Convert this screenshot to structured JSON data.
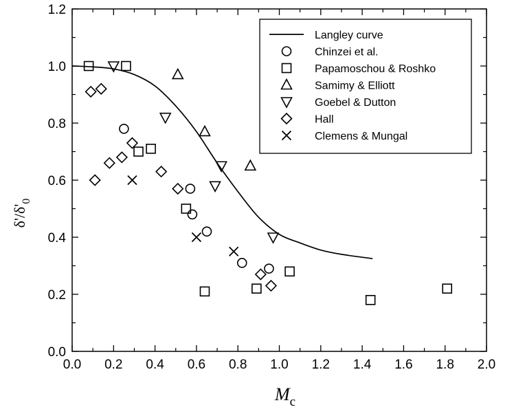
{
  "chart_data": {
    "type": "scatter",
    "xlabel": "M",
    "xlabel_subscript": "c",
    "ylabel": "δ'/δ'",
    "ylabel_subscript": "0",
    "xlim": [
      0.0,
      2.0
    ],
    "ylim": [
      0.0,
      1.2
    ],
    "x_ticks": [
      "0.0",
      "0.2",
      "0.4",
      "0.6",
      "0.8",
      "1.0",
      "1.2",
      "1.4",
      "1.6",
      "1.8",
      "2.0"
    ],
    "y_ticks": [
      "0.0",
      "0.2",
      "0.4",
      "0.6",
      "0.8",
      "1.0",
      "1.2"
    ],
    "grid": false,
    "legend_position": "top-right",
    "series": [
      {
        "name": "Langley curve",
        "kind": "line",
        "marker": "none",
        "x": [
          0.0,
          0.1,
          0.2,
          0.3,
          0.4,
          0.5,
          0.6,
          0.7,
          0.8,
          0.9,
          1.0,
          1.1,
          1.2,
          1.3,
          1.45
        ],
        "y": [
          1.0,
          0.997,
          0.99,
          0.97,
          0.93,
          0.86,
          0.77,
          0.66,
          0.56,
          0.47,
          0.41,
          0.38,
          0.355,
          0.34,
          0.325
        ]
      },
      {
        "name": "Chinzei et al.",
        "marker": "circle",
        "x": [
          0.25,
          0.57,
          0.58,
          0.65,
          0.82,
          0.95
        ],
        "y": [
          0.78,
          0.57,
          0.48,
          0.42,
          0.31,
          0.29
        ]
      },
      {
        "name": "Papamoschou & Roshko",
        "marker": "square",
        "x": [
          0.08,
          0.26,
          0.32,
          0.38,
          0.55,
          0.64,
          0.89,
          1.05,
          1.44,
          1.81
        ],
        "y": [
          1.0,
          1.0,
          0.7,
          0.71,
          0.5,
          0.21,
          0.22,
          0.28,
          0.18,
          0.22
        ]
      },
      {
        "name": "Samimy & Elliott",
        "marker": "triangle-up",
        "x": [
          0.51,
          0.64,
          0.86
        ],
        "y": [
          0.97,
          0.77,
          0.65
        ]
      },
      {
        "name": "Goebel & Dutton",
        "marker": "triangle-down",
        "x": [
          0.2,
          0.45,
          0.69,
          0.72,
          0.97
        ],
        "y": [
          1.0,
          0.82,
          0.58,
          0.65,
          0.4
        ]
      },
      {
        "name": "Hall",
        "marker": "diamond",
        "x": [
          0.09,
          0.14,
          0.11,
          0.18,
          0.24,
          0.29,
          0.43,
          0.51,
          0.91,
          0.96
        ],
        "y": [
          0.91,
          0.92,
          0.6,
          0.66,
          0.68,
          0.73,
          0.63,
          0.57,
          0.27,
          0.23
        ]
      },
      {
        "name": "Clemens & Mungal",
        "marker": "x",
        "x": [
          0.29,
          0.6,
          0.78
        ],
        "y": [
          0.6,
          0.4,
          0.35
        ]
      }
    ]
  }
}
